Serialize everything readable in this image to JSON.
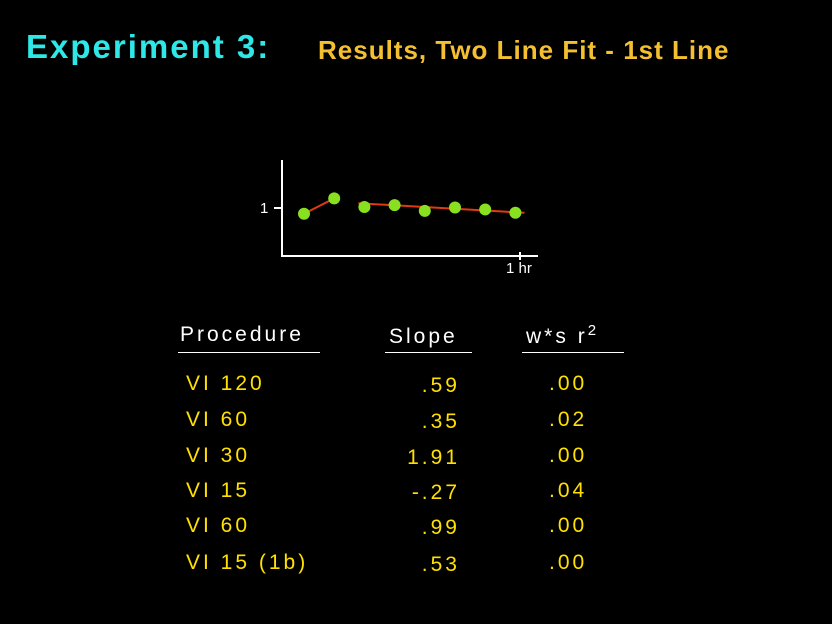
{
  "title": {
    "main": "Experiment 3:",
    "subtitle": "Results, Two Line Fit - 1st Line"
  },
  "chart_data": {
    "type": "scatter",
    "y_tick_label": "1",
    "x_tick_label": "1 hr",
    "points_segment1": [
      [
        0,
        0.88
      ],
      [
        1,
        1.2
      ]
    ],
    "points_segment2": [
      [
        2,
        1.02
      ],
      [
        3,
        1.06
      ],
      [
        4,
        0.94
      ],
      [
        5,
        1.01
      ],
      [
        6,
        0.97
      ],
      [
        7,
        0.9
      ]
    ],
    "fit_line_segment1": [
      [
        0,
        0.88
      ],
      [
        1,
        1.2
      ]
    ],
    "fit_line_segment2": [
      [
        1.8,
        1.1
      ],
      [
        7.3,
        0.9
      ]
    ],
    "colors": {
      "points": "#88e020",
      "fit_line": "#e03a10",
      "axes": "#ffffff"
    }
  },
  "table": {
    "headers": {
      "procedure": "Procedure",
      "slope": "Slope",
      "ws": "w*s",
      "r": "r",
      "r_sup": "2"
    },
    "rows": [
      {
        "procedure": "VI 120",
        "slope": ".59",
        "ws_r2": ".00"
      },
      {
        "procedure": "VI 60",
        "slope": ".35",
        "ws_r2": ".02"
      },
      {
        "procedure": "VI 30",
        "slope": "1.91",
        "ws_r2": ".00"
      },
      {
        "procedure": "VI 15",
        "slope": "-.27",
        "ws_r2": ".04"
      },
      {
        "procedure": "VI 60",
        "slope": ".99",
        "ws_r2": ".00"
      },
      {
        "procedure": "VI 15 (1b)",
        "slope": ".53",
        "ws_r2": ".00"
      }
    ],
    "colors": {
      "header": "#ffffff",
      "values": "#ffe000"
    }
  }
}
